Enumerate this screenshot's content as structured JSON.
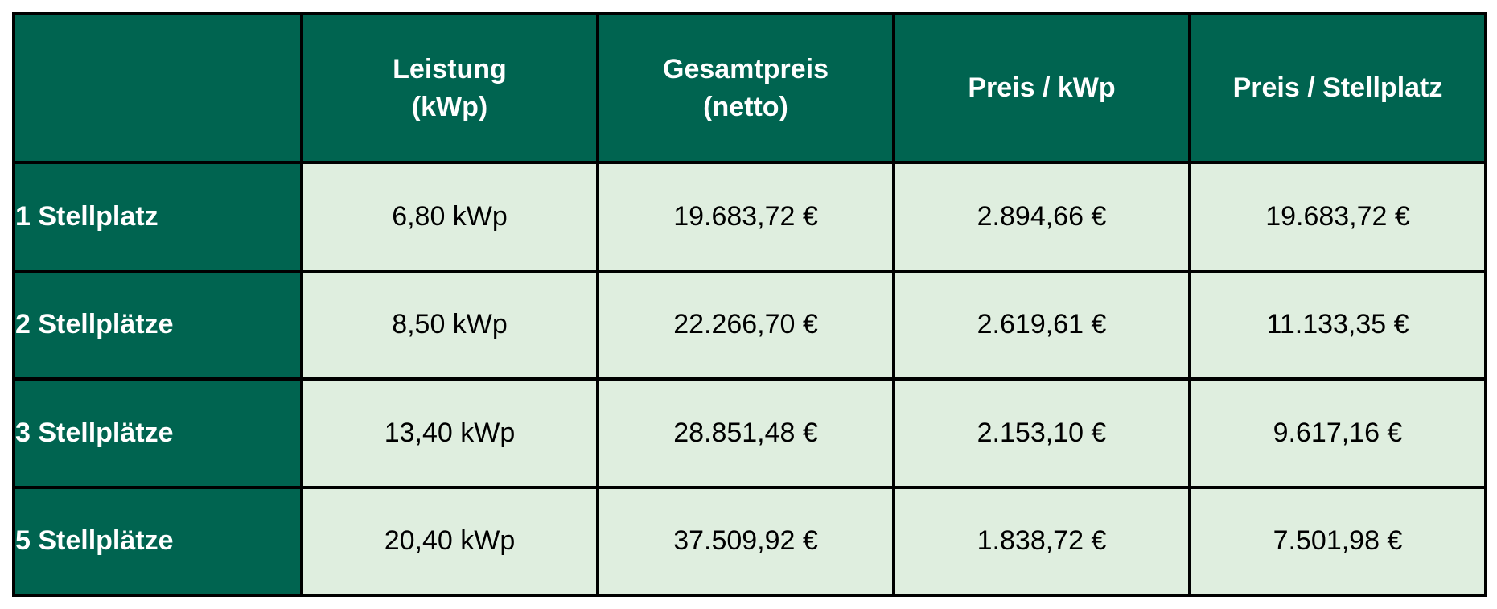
{
  "table": {
    "headers": [
      {
        "line1": "",
        "line2": ""
      },
      {
        "line1": "Leistung",
        "line2": "(kWp)"
      },
      {
        "line1": "Gesamtpreis",
        "line2": "(netto)"
      },
      {
        "line1": "Preis / kWp",
        "line2": ""
      },
      {
        "line1": "Preis / Stellplatz",
        "line2": ""
      }
    ],
    "rows": [
      {
        "label": "1 Stellplatz",
        "cells": [
          "6,80 kWp",
          "19.683,72 €",
          "2.894,66 €",
          "19.683,72 €"
        ]
      },
      {
        "label": "2 Stellplätze",
        "cells": [
          "8,50 kWp",
          "22.266,70 €",
          "2.619,61 €",
          "11.133,35 €"
        ]
      },
      {
        "label": "3 Stellplätze",
        "cells": [
          "13,40 kWp",
          "28.851,48 €",
          "2.153,10 €",
          "9.617,16 €"
        ]
      },
      {
        "label": "5 Stellplätze",
        "cells": [
          "20,40 kWp",
          "37.509,92 €",
          "1.838,72 €",
          "7.501,98 €"
        ]
      }
    ]
  },
  "colors": {
    "header_bg": "#006450",
    "cell_bg": "#dfeedf",
    "border": "#000000"
  }
}
